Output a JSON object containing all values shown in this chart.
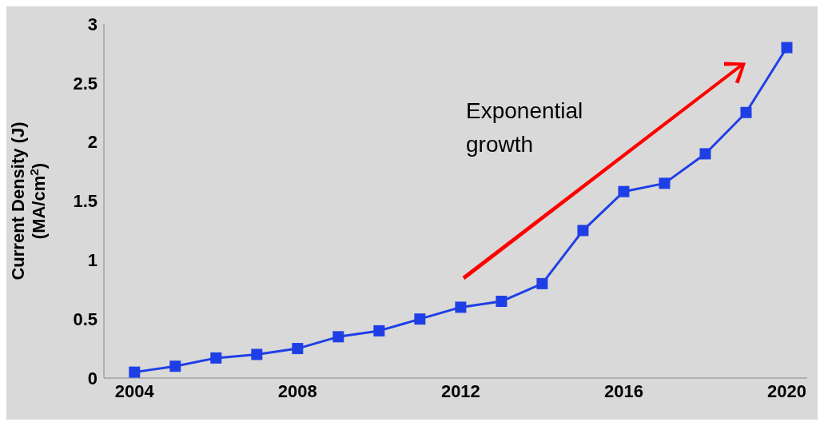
{
  "chart_data": {
    "type": "line",
    "ylabel": "Current Density (J)\n(MA/cm$^{2}$)",
    "x": [
      2004,
      2005,
      2006,
      2007,
      2008,
      2009,
      2010,
      2011,
      2012,
      2013,
      2014,
      2015,
      2016,
      2017,
      2018,
      2019,
      2020
    ],
    "series": [
      {
        "color": "#1f3fe6",
        "values": [
          0.05,
          0.1,
          0.17,
          0.2,
          0.25,
          0.35,
          0.4,
          0.5,
          0.6,
          0.65,
          0.8,
          1.25,
          1.58,
          1.65,
          1.9,
          2.25,
          2.8
        ]
      }
    ],
    "xlim": [
      2003.25,
      2020.5
    ],
    "xticks": [
      2004,
      2008,
      2012,
      2016,
      2020
    ],
    "ylim": [
      0,
      3
    ],
    "yticks": [
      0,
      0.5,
      1,
      1.5,
      2,
      2.5,
      3
    ],
    "annotations": [
      "Exponential growth"
    ],
    "grid": false,
    "legend": false,
    "marker": "square",
    "line_style": "solid"
  }
}
